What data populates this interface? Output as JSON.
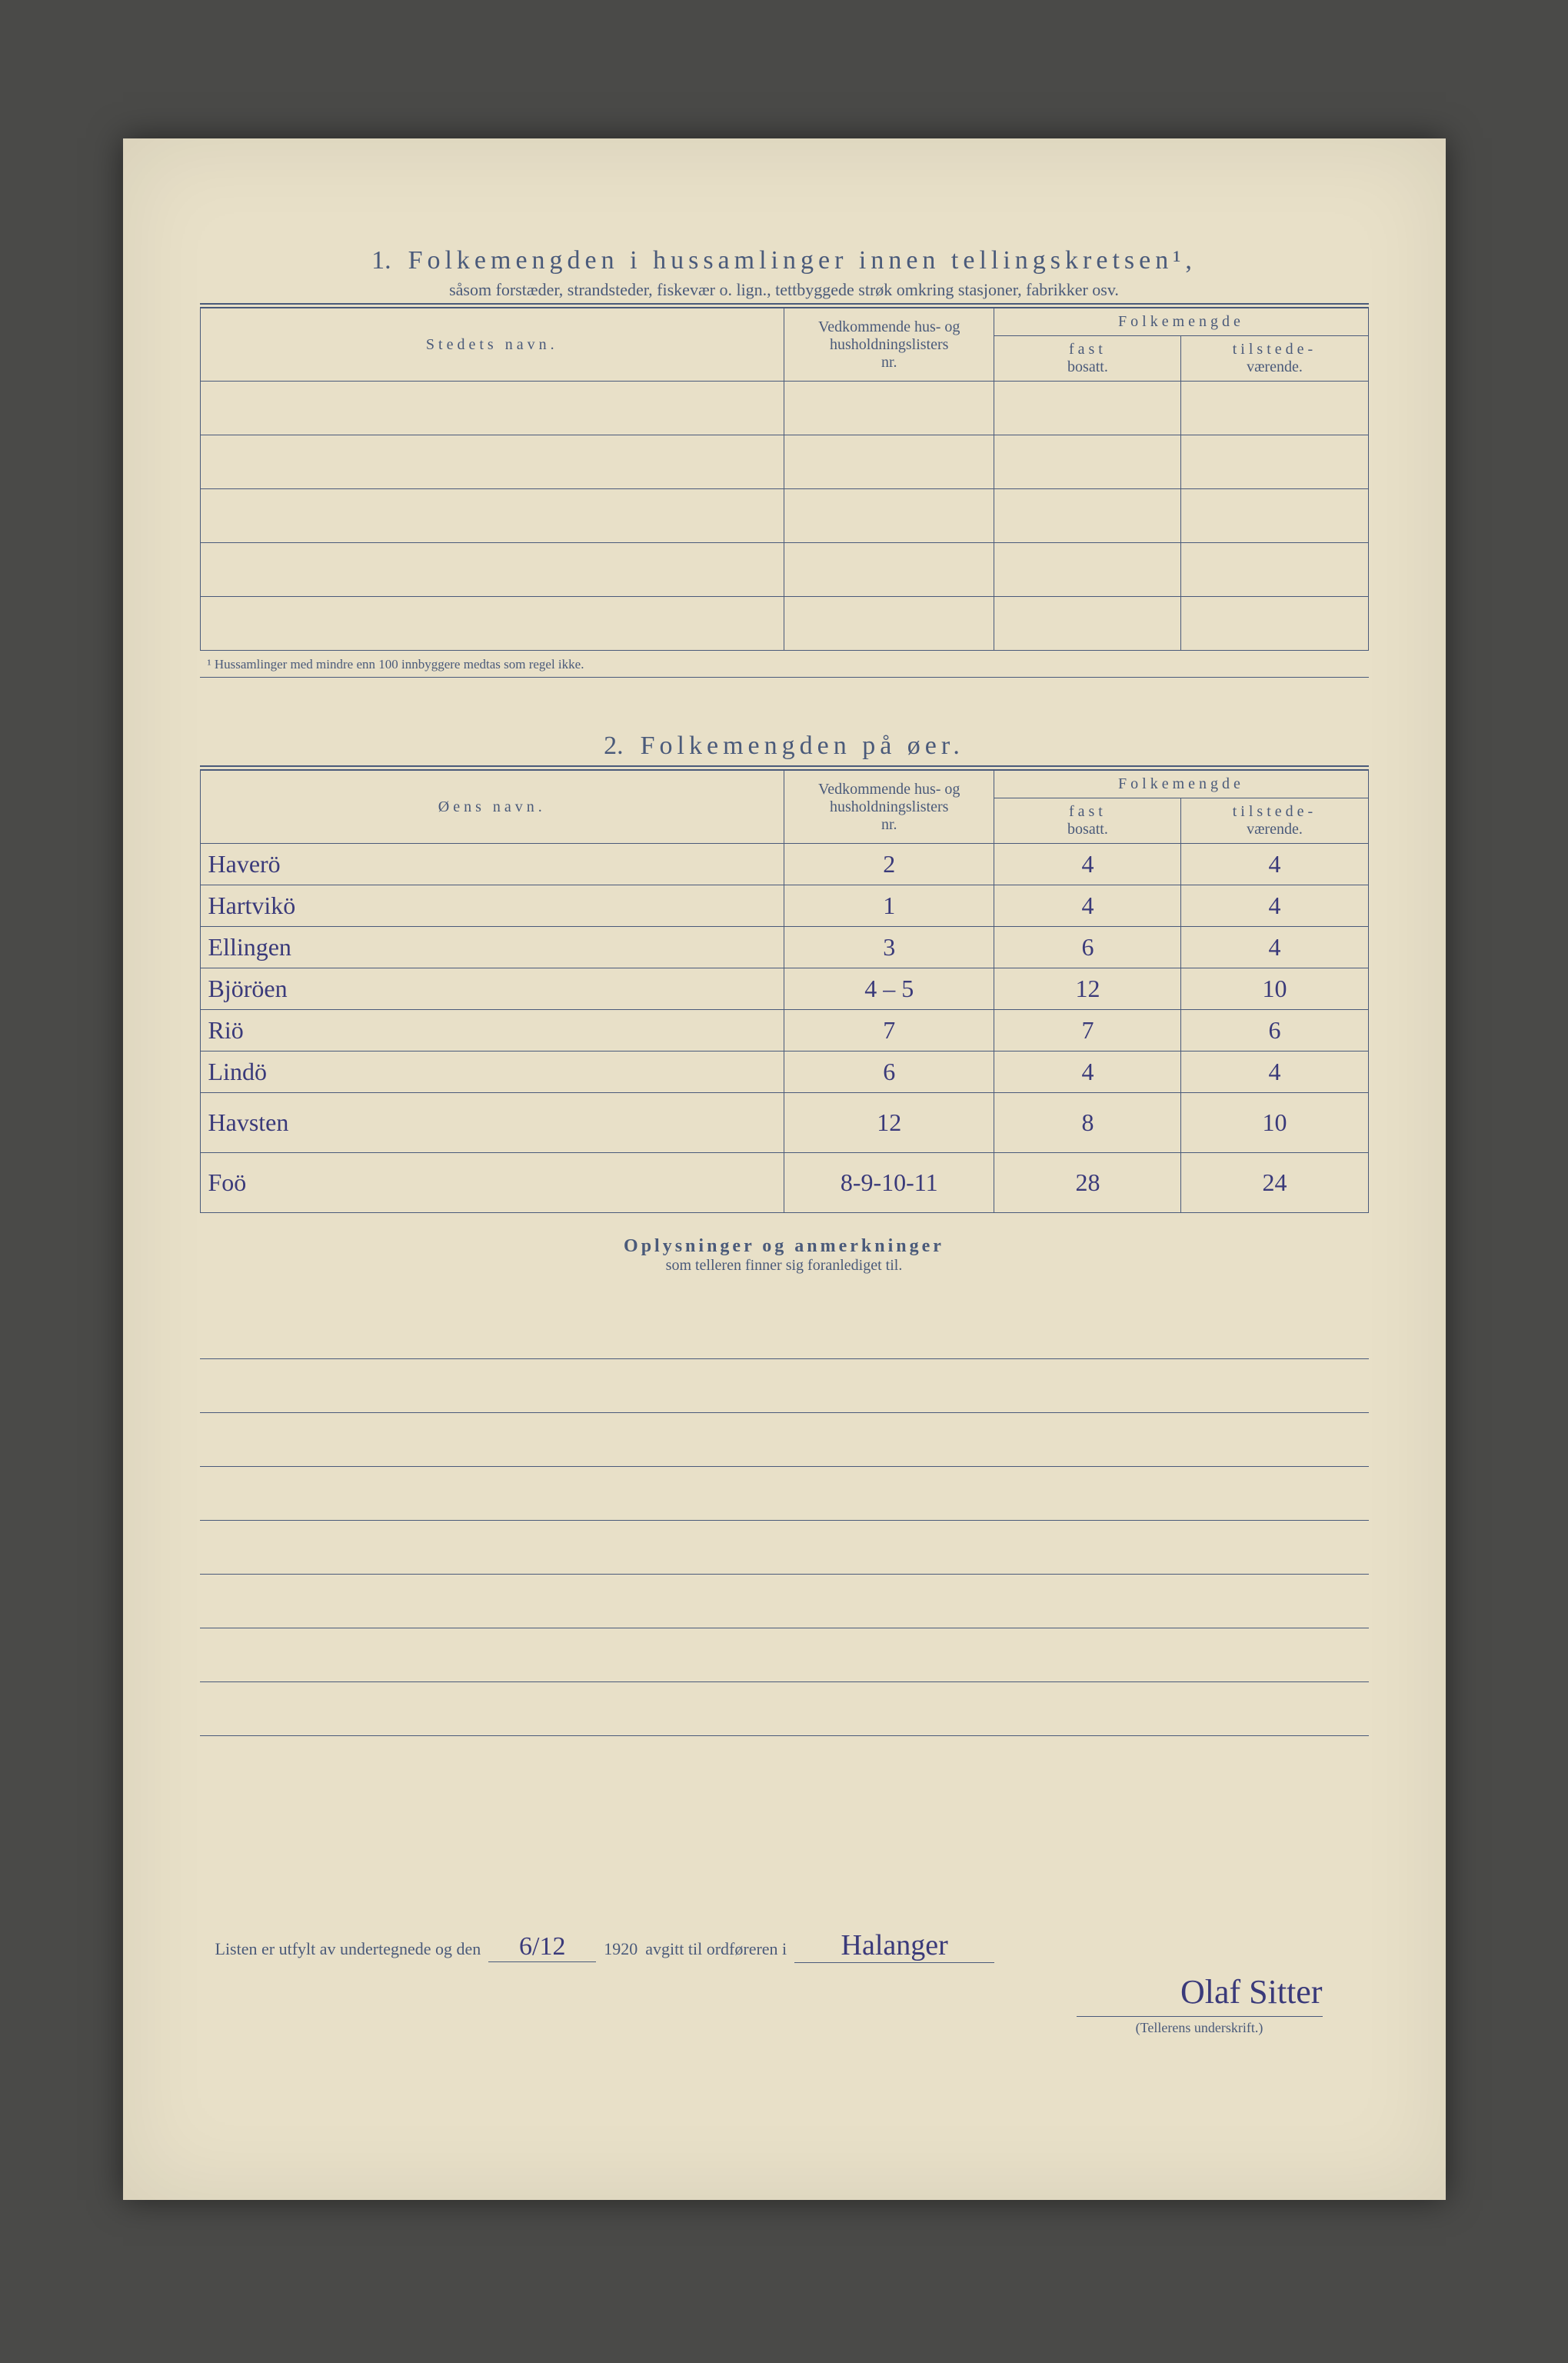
{
  "page": {
    "background": "#e8e0c8",
    "ink_color": "#4a5a7a",
    "handwriting_color": "#3a3a7a"
  },
  "section1": {
    "number": "1.",
    "title": "Folkemengden i hussamlinger innen tellingskretsen¹,",
    "subtitle": "såsom forstæder, strandsteder, fiskevær o. lign., tettbyggede strøk omkring stasjoner, fabrikker osv.",
    "col_name": "Stedets navn.",
    "col_nr_1": "Vedkommende hus- og",
    "col_nr_2": "husholdningslisters",
    "col_nr_3": "nr.",
    "col_pop": "Folkemengde",
    "col_fast_1": "fast",
    "col_fast_2": "bosatt.",
    "col_til_1": "tilstede-",
    "col_til_2": "værende.",
    "footnote": "¹  Hussamlinger med mindre enn 100 innbyggere medtas som regel ikke.",
    "empty_rows": 5
  },
  "section2": {
    "number": "2.",
    "title": "Folkemengden på øer.",
    "col_name": "Øens navn.",
    "col_nr_1": "Vedkommende hus- og",
    "col_nr_2": "husholdningslisters",
    "col_nr_3": "nr.",
    "col_pop": "Folkemengde",
    "col_fast_1": "fast",
    "col_fast_2": "bosatt.",
    "col_til_1": "tilstede-",
    "col_til_2": "værende.",
    "rows": [
      {
        "name": "Haverö",
        "nr": "2",
        "fast": "4",
        "til": "4"
      },
      {
        "name": "Hartvikö",
        "nr": "1",
        "fast": "4",
        "til": "4"
      },
      {
        "name": "Ellingen",
        "nr": "3",
        "fast": "6",
        "til": "4"
      },
      {
        "name": "Björöen",
        "nr": "4 – 5",
        "fast": "12",
        "til": "10"
      },
      {
        "name": "Riö",
        "nr": "7",
        "fast": "7",
        "til": "6"
      },
      {
        "name": "Lindö",
        "nr": "6",
        "fast": "4",
        "til": "4"
      },
      {
        "name": "Havsten",
        "nr": "12",
        "fast": "8",
        "til": "10"
      },
      {
        "name": "Foö",
        "nr": "8-9-10-11",
        "fast": "28",
        "til": "24"
      }
    ]
  },
  "oplysninger": {
    "title": "Oplysninger og anmerkninger",
    "subtitle": "som telleren finner sig foranlediget til.",
    "blank_lines": 8
  },
  "footer": {
    "prefix": "Listen er utfylt av undertegnede og den",
    "date": "6/12",
    "year": "1920",
    "mid": "avgitt til ordføreren i",
    "place": "Halanger",
    "signature": "Olaf Sitter",
    "sig_label": "(Tellerens underskrift.)"
  }
}
